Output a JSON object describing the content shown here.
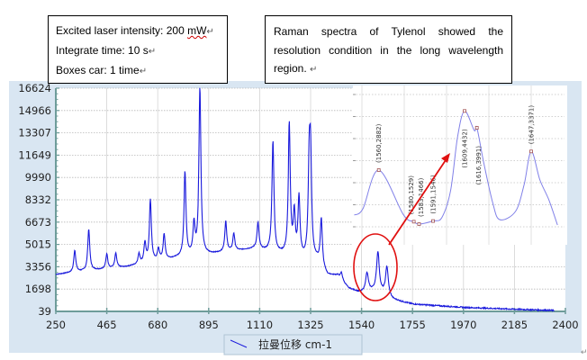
{
  "notes": {
    "settings": {
      "line1_label": "Excited laser intensity: 200 ",
      "line1_unit": "mW",
      "line2": "Integrate time: 10 s",
      "line3": "Boxes car: 1 time"
    },
    "caption": "Raman spectra of Tylenol showed the resolution condition in the long wavelength region. ",
    "paragraph_mark": "↵"
  },
  "chart_data": [
    {
      "type": "line",
      "legend": "拉曼位移 cm-1",
      "legend_placement": "bottom",
      "xlim": [
        250,
        2400
      ],
      "ylim": [
        39,
        16624
      ],
      "x_ticks": [
        "250",
        "465",
        "680",
        "895",
        "1110",
        "1325",
        "1540",
        "1755",
        "1970",
        "2185",
        "2400"
      ],
      "y_ticks": [
        "39",
        "1698",
        "3356",
        "5015",
        "6673",
        "8332",
        "9990",
        "11649",
        "13307",
        "14966",
        "16624"
      ],
      "grid": true,
      "line_color": "#1a1adc",
      "baseline": [
        [
          250,
          2780
        ],
        [
          355,
          3000
        ],
        [
          544,
          3340
        ],
        [
          759,
          4010
        ],
        [
          897,
          4277
        ],
        [
          1088,
          4700
        ],
        [
          1200,
          4277
        ],
        [
          1302,
          3860
        ],
        [
          1352,
          3800
        ],
        [
          1397,
          2700
        ],
        [
          1440,
          2700
        ],
        [
          1485,
          1750
        ],
        [
          1531,
          1440
        ],
        [
          1587,
          1500
        ],
        [
          1630,
          1300
        ],
        [
          1670,
          900
        ],
        [
          1759,
          570
        ],
        [
          1974,
          330
        ],
        [
          2185,
          200
        ],
        [
          2353,
          110
        ]
      ],
      "peaks": [
        [
          330,
          4571
        ],
        [
          389,
          6131
        ],
        [
          465,
          4277
        ],
        [
          503,
          4340
        ],
        [
          601,
          4277
        ],
        [
          626,
          5060
        ],
        [
          649,
          8294
        ],
        [
          683,
          4620
        ],
        [
          707,
          5750
        ],
        [
          795,
          10370
        ],
        [
          833,
          6400
        ],
        [
          858,
          16624
        ],
        [
          967,
          6690
        ],
        [
          1001,
          5800
        ],
        [
          1103,
          6580
        ],
        [
          1166,
          12647
        ],
        [
          1235,
          13900
        ],
        [
          1256,
          7136
        ],
        [
          1276,
          8360
        ],
        [
          1319,
          10400
        ],
        [
          1325,
          10800
        ],
        [
          1370,
          6850
        ],
        [
          1455,
          2900
        ],
        [
          1563,
          2850
        ],
        [
          1609,
          4410
        ],
        [
          1647,
          3300
        ]
      ],
      "highlight_region": [
        1540,
        1670
      ]
    },
    {
      "type": "line",
      "role": "inset",
      "line_color": "#8080e8",
      "xlim": [
        1546,
        1668
      ],
      "ylim": [
        1300,
        4700
      ],
      "points": [
        [
          1546,
          1701
        ],
        [
          1551,
          1874
        ],
        [
          1560,
          2882
        ],
        [
          1574,
          1718
        ],
        [
          1580,
          1529
        ],
        [
          1583,
          1466
        ],
        [
          1591,
          1546
        ],
        [
          1596,
          1638
        ],
        [
          1601,
          2346
        ],
        [
          1605,
          3762
        ],
        [
          1609,
          4432
        ],
        [
          1614.5,
          3920
        ],
        [
          1616,
          3991
        ],
        [
          1620,
          3054
        ],
        [
          1625,
          2032
        ],
        [
          1629,
          1583
        ],
        [
          1638,
          1796
        ],
        [
          1643,
          2504
        ],
        [
          1647,
          3371
        ],
        [
          1652,
          2622
        ],
        [
          1657,
          2110
        ],
        [
          1662,
          1442
        ]
      ],
      "labeled_points": [
        {
          "x": 1560,
          "y": 2882,
          "label": "(1560,2882)"
        },
        {
          "x": 1580,
          "y": 1529,
          "label": "(1580,1529)"
        },
        {
          "x": 1583,
          "y": 1466,
          "label": "(1583,1466)"
        },
        {
          "x": 1591,
          "y": 1546,
          "label": "(1591,1546)"
        },
        {
          "x": 1609,
          "y": 4432,
          "label": "(1609,4432)"
        },
        {
          "x": 1616,
          "y": 3991,
          "label": "(1616,3991)"
        },
        {
          "x": 1647,
          "y": 3371,
          "label": "(1647,3371)"
        }
      ]
    }
  ],
  "colors": {
    "panel_bg": "#d9e6f2",
    "axis": "#6e9c9a",
    "annotation": "#e01010"
  }
}
